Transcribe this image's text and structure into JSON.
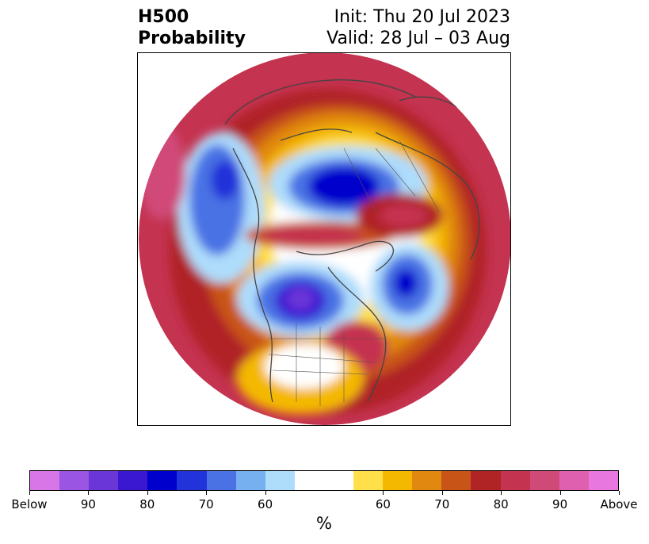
{
  "title": {
    "left_line1": "H500",
    "left_line2": "Probability",
    "right_line1": "Init: Thu 20 Jul 2023",
    "right_line2": "Valid: 28 Jul – 03 Aug"
  },
  "colorbar": {
    "unit": "%",
    "colors": [
      "#d876e8",
      "#9a55e2",
      "#6b36d8",
      "#3a18d2",
      "#0000cc",
      "#2233d9",
      "#4a72e4",
      "#77b0f1",
      "#aedcfb",
      "#ffffff",
      "#ffffff",
      "#ffe04a",
      "#f4b800",
      "#e08810",
      "#c95418",
      "#b02426",
      "#c43350",
      "#d04a78",
      "#e060b0",
      "#e878e0"
    ],
    "tick_labels": [
      "Below",
      "90",
      "80",
      "70",
      "60",
      "60",
      "70",
      "80",
      "90",
      "Above"
    ],
    "tick_index": [
      0,
      2,
      4,
      6,
      8,
      12,
      14,
      16,
      18,
      20
    ]
  },
  "map": {
    "projection": "north-polar-stereographic",
    "colors": {
      "above_strong": "#d04a78",
      "above_red": "#b02426",
      "above_orange": "#e08810",
      "above_yellow": "#f4b800",
      "above_light": "#ffe04a",
      "below_light": "#aedcfb",
      "below_mid": "#4a72e4",
      "below_strong": "#0000cc",
      "below_purple": "#6b36d8"
    }
  }
}
